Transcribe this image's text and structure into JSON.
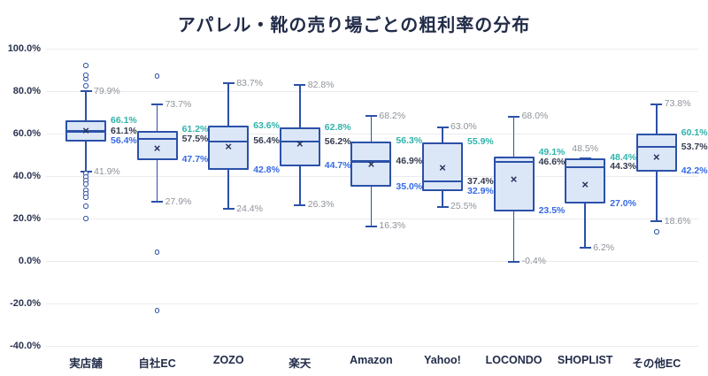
{
  "chart_data": {
    "type": "box",
    "title": "アパレル・靴の売り場ごとの粗利率の分布",
    "ylabel": "",
    "xlabel": "",
    "ylim": [
      -40,
      100
    ],
    "ytick_step": 20,
    "yticks": [
      100,
      80,
      60,
      40,
      20,
      0,
      -20,
      -40
    ],
    "ytick_labels": [
      "100.0%",
      "80.0%",
      "60.0%",
      "40.0%",
      "20.0%",
      "0.0%",
      "-20.0%",
      "-40.0%"
    ],
    "grid": true,
    "legend": "none",
    "mean_marker": "×",
    "series": [
      {
        "label": "実店舗",
        "whisker_high": 79.9,
        "q3": 66.1,
        "median": 61.1,
        "mean": 61.1,
        "q1": 56.4,
        "whisker_low": 41.9,
        "outliers": [
          92.0,
          87.5,
          85.7,
          82.6,
          41.2,
          39.6,
          37.9,
          36.2,
          33.3,
          31.7,
          30.0,
          25.8,
          20.0
        ]
      },
      {
        "label": "自社EC",
        "whisker_high": 73.7,
        "q3": 61.2,
        "median": 57.5,
        "mean": 52.9,
        "q1": 47.7,
        "whisker_low": 27.9,
        "outliers": [
          87.1,
          4.2,
          -23.3
        ]
      },
      {
        "label": "ZOZO",
        "whisker_high": 83.7,
        "q3": 63.6,
        "median": 56.4,
        "mean": 53.8,
        "q1": 42.8,
        "whisker_low": 24.4,
        "outliers": []
      },
      {
        "label": "楽天",
        "whisker_high": 82.8,
        "q3": 62.8,
        "median": 56.2,
        "mean": 55.2,
        "q1": 44.7,
        "whisker_low": 26.3,
        "outliers": []
      },
      {
        "label": "Amazon",
        "whisker_high": 68.2,
        "q3": 56.3,
        "median": 46.9,
        "mean": 45.3,
        "q1": 35.0,
        "whisker_low": 16.3,
        "outliers": []
      },
      {
        "label": "Yahoo!",
        "whisker_high": 63.0,
        "q3": 55.9,
        "median": 37.4,
        "mean": 43.7,
        "q1": 32.9,
        "whisker_low": 25.5,
        "outliers": []
      },
      {
        "label": "LOCONDO",
        "whisker_high": 68.0,
        "q3": 49.1,
        "median": 46.6,
        "mean": 38.3,
        "q1": 23.5,
        "whisker_low": -0.4,
        "outliers": []
      },
      {
        "label": "SHOPLIST",
        "whisker_high": 48.5,
        "q3": 48.4,
        "median": 44.3,
        "mean": 35.8,
        "q1": 27.0,
        "whisker_low": 6.2,
        "outliers": [],
        "high_label_above": true
      },
      {
        "label": "その他EC",
        "whisker_high": 73.8,
        "q3": 60.1,
        "median": 53.7,
        "mean": 48.7,
        "q1": 42.2,
        "whisker_low": 18.6,
        "outliers": [
          13.8
        ]
      }
    ],
    "colors": {
      "box_border": "#2b51a8",
      "box_fill": "#dbe6f7",
      "whisker_label": "#8e929a",
      "q3_label": "#2fb3ab",
      "median_label": "#343b4e",
      "q1_label": "#3569e3",
      "title_text": "#222c49",
      "gridline": "#ebebee"
    }
  }
}
